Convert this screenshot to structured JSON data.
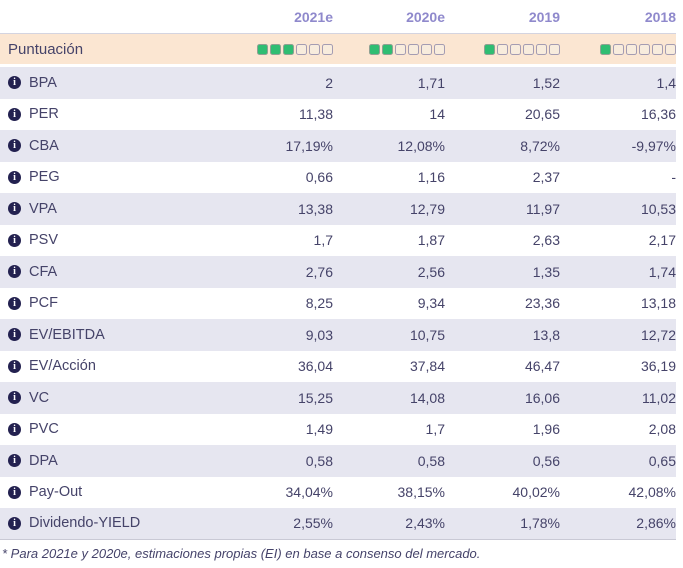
{
  "header": {
    "columns": [
      "2021e",
      "2020e",
      "2019",
      "2018"
    ]
  },
  "score_row": {
    "label": "Puntuación",
    "max_squares": 6,
    "scores": [
      3,
      2,
      1,
      1
    ]
  },
  "rows": [
    {
      "label": "BPA",
      "values": [
        "2",
        "1,71",
        "1,52",
        "1,4"
      ]
    },
    {
      "label": "PER",
      "values": [
        "11,38",
        "14",
        "20,65",
        "16,36"
      ]
    },
    {
      "label": "CBA",
      "values": [
        "17,19%",
        "12,08%",
        "8,72%",
        "-9,97%"
      ]
    },
    {
      "label": "PEG",
      "values": [
        "0,66",
        "1,16",
        "2,37",
        "-"
      ]
    },
    {
      "label": "VPA",
      "values": [
        "13,38",
        "12,79",
        "11,97",
        "10,53"
      ]
    },
    {
      "label": "PSV",
      "values": [
        "1,7",
        "1,87",
        "2,63",
        "2,17"
      ]
    },
    {
      "label": "CFA",
      "values": [
        "2,76",
        "2,56",
        "1,35",
        "1,74"
      ]
    },
    {
      "label": "PCF",
      "values": [
        "8,25",
        "9,34",
        "23,36",
        "13,18"
      ]
    },
    {
      "label": "EV/EBITDA",
      "values": [
        "9,03",
        "10,75",
        "13,8",
        "12,72"
      ]
    },
    {
      "label": "EV/Acción",
      "values": [
        "36,04",
        "37,84",
        "46,47",
        "36,19"
      ]
    },
    {
      "label": "VC",
      "values": [
        "15,25",
        "14,08",
        "16,06",
        "11,02"
      ]
    },
    {
      "label": "PVC",
      "values": [
        "1,49",
        "1,7",
        "1,96",
        "2,08"
      ]
    },
    {
      "label": "DPA",
      "values": [
        "0,58",
        "0,58",
        "0,56",
        "0,65"
      ]
    },
    {
      "label": "Pay-Out",
      "values": [
        "34,04%",
        "38,15%",
        "40,02%",
        "42,08%"
      ]
    },
    {
      "label": "Dividendo-YIELD",
      "values": [
        "2,55%",
        "2,43%",
        "1,78%",
        "2,86%"
      ]
    }
  ],
  "icons": {
    "info": "info-icon",
    "info_glyph": "i"
  },
  "footnote": "* Para 2021e y 2020e, estimaciones propias (EI) en base a consenso del mercado.",
  "colors": {
    "header_text": "#8f89cc",
    "body_text": "#454369",
    "row_alt_bg": "#e6e6f0",
    "score_row_bg": "#fbe6d2",
    "square_filled": "#2fbd72",
    "square_border": "#a49cb2",
    "info_icon_bg": "#232150",
    "separator": "#d4d4e0"
  }
}
